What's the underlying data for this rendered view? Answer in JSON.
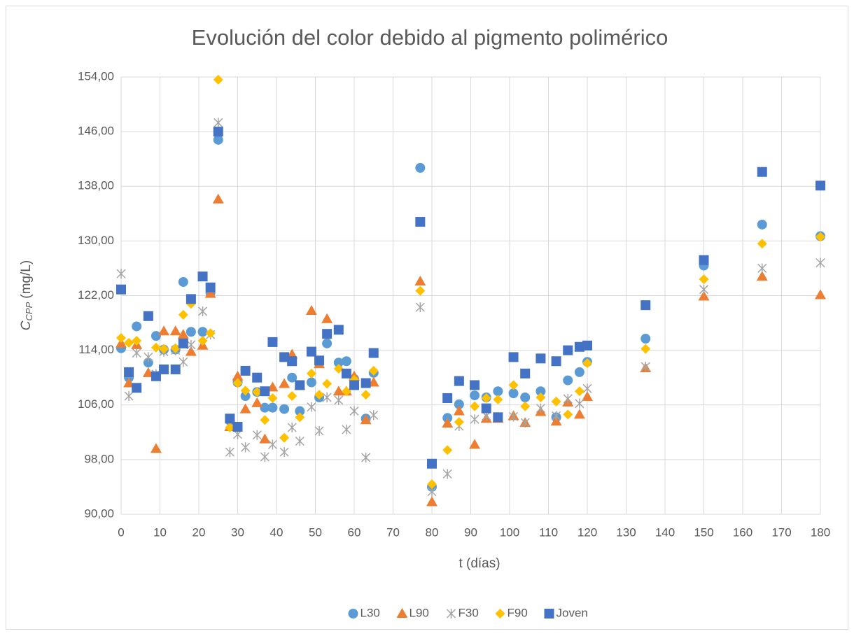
{
  "chart_data": {
    "type": "scatter",
    "title": "Evolución del color debido al pigmento polimérico",
    "x_label": "t (días)",
    "y_label": {
      "symbol": "C",
      "subscript": "CPP",
      "unit": "(mg/L)"
    },
    "xlim": [
      0,
      180
    ],
    "xticks": [
      0,
      10,
      20,
      30,
      40,
      50,
      60,
      70,
      80,
      90,
      100,
      110,
      120,
      130,
      140,
      150,
      160,
      170,
      180
    ],
    "ylim": [
      90,
      154
    ],
    "yticks": [
      {
        "value": 90,
        "label": "90,00"
      },
      {
        "value": 98,
        "label": "98,00"
      },
      {
        "value": 106,
        "label": "106,00"
      },
      {
        "value": 114,
        "label": "114,00"
      },
      {
        "value": 122,
        "label": "122,00"
      },
      {
        "value": 130,
        "label": "130,00"
      },
      {
        "value": 138,
        "label": "138,00"
      },
      {
        "value": 146,
        "label": "146,00"
      },
      {
        "value": 154,
        "label": "154,00"
      }
    ],
    "grid": true,
    "legend": "bottom",
    "x": [
      0,
      2,
      4,
      7,
      9,
      11,
      14,
      16,
      18,
      21,
      23,
      25,
      28,
      30,
      32,
      35,
      37,
      39,
      42,
      44,
      46,
      49,
      51,
      53,
      56,
      58,
      60,
      63,
      65,
      77,
      80,
      84,
      87,
      91,
      94,
      97,
      101,
      104,
      108,
      112,
      115,
      118,
      120,
      135,
      150,
      165,
      180
    ],
    "series": [
      {
        "name": "L30",
        "color": "#5b9bd5",
        "marker": "circle",
        "values": [
          114.3,
          110.0,
          117.5,
          112.2,
          116.1,
          114.1,
          114.1,
          124.0,
          116.7,
          116.7,
          122.4,
          144.8,
          103.7,
          109.3,
          107.3,
          107.9,
          105.6,
          105.6,
          105.4,
          110.0,
          105.1,
          109.3,
          107.1,
          115.0,
          112.2,
          112.4,
          109.8,
          104.0,
          110.7,
          140.7,
          94.0,
          104.1,
          106.1,
          107.4,
          107.1,
          108.0,
          107.7,
          107.1,
          108.0,
          104.2,
          109.6,
          110.8,
          112.3,
          115.7,
          126.4,
          132.4,
          130.7
        ]
      },
      {
        "name": "L90",
        "color": "#ed7d31",
        "marker": "triangle",
        "values": [
          115.0,
          109.2,
          114.8,
          110.7,
          99.6,
          116.8,
          116.8,
          116.3,
          113.8,
          114.7,
          122.3,
          136.1,
          102.8,
          110.2,
          105.4,
          106.3,
          101.0,
          108.6,
          109.1,
          113.4,
          108.8,
          119.8,
          112.0,
          118.6,
          108.0,
          108.0,
          110.2,
          103.8,
          109.3,
          124.1,
          91.8,
          103.3,
          105.1,
          100.2,
          104.0,
          104.0,
          104.4,
          103.4,
          105.0,
          103.6,
          106.4,
          104.6,
          107.2,
          111.4,
          121.9,
          124.8,
          122.1
        ]
      },
      {
        "name": "F30",
        "color": "#a5a5a5",
        "marker": "star",
        "values": [
          125.2,
          107.3,
          113.6,
          113.0,
          110.5,
          113.8,
          114.0,
          112.3,
          114.8,
          119.7,
          116.3,
          147.3,
          99.1,
          101.7,
          99.8,
          101.6,
          98.4,
          100.2,
          99.1,
          102.7,
          100.7,
          105.7,
          102.2,
          107.1,
          106.7,
          102.4,
          105.1,
          98.3,
          104.5,
          120.3,
          93.3,
          95.9,
          102.9,
          103.9,
          104.4,
          104.2,
          104.3,
          103.4,
          105.5,
          104.4,
          106.9,
          106.2,
          108.4,
          111.6,
          122.9,
          126.0,
          126.8
        ]
      },
      {
        "name": "F90",
        "color": "#ffc000",
        "marker": "diamond",
        "values": [
          115.8,
          115.1,
          115.4,
          119.0,
          114.4,
          114.2,
          114.3,
          119.2,
          120.8,
          115.4,
          116.5,
          153.6,
          102.7,
          109.2,
          108.1,
          107.9,
          103.8,
          107.0,
          101.2,
          107.3,
          104.2,
          110.6,
          107.5,
          109.1,
          111.3,
          108.0,
          109.7,
          107.5,
          111.0,
          122.7,
          94.4,
          99.4,
          103.5,
          105.8,
          107.0,
          106.8,
          108.9,
          105.8,
          107.1,
          106.5,
          104.6,
          108.0,
          112.1,
          114.2,
          124.4,
          129.6,
          130.6
        ]
      },
      {
        "name": "Joven",
        "color": "#4472c4",
        "marker": "square",
        "values": [
          122.9,
          110.8,
          108.5,
          119.0,
          110.2,
          111.2,
          111.2,
          115.0,
          121.5,
          124.8,
          123.2,
          146.0,
          104.0,
          102.8,
          111.0,
          110.0,
          108.0,
          115.2,
          113.0,
          112.4,
          108.9,
          113.8,
          112.5,
          116.4,
          117.0,
          110.6,
          108.9,
          109.2,
          113.6,
          132.8,
          97.4,
          107.0,
          109.5,
          108.9,
          105.5,
          104.2,
          113.0,
          110.6,
          112.8,
          112.4,
          114.0,
          114.5,
          114.7,
          120.6,
          127.2,
          140.1,
          138.1
        ]
      }
    ]
  }
}
